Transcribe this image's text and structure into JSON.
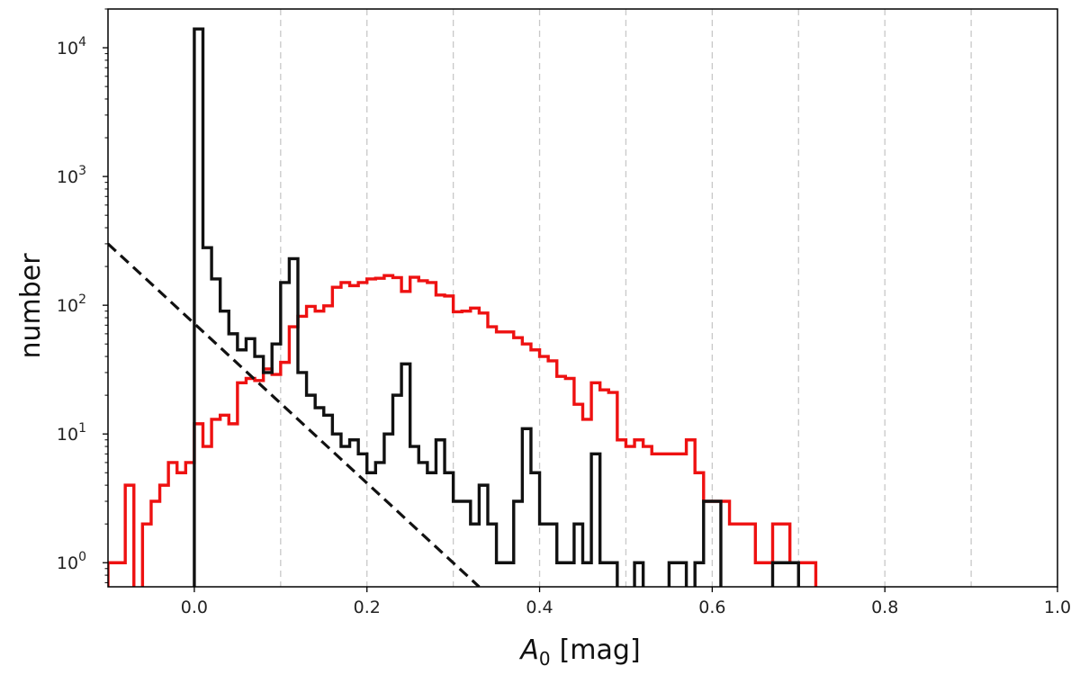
{
  "chart_data": {
    "type": "histogram",
    "xlabel_symbol": "A",
    "xlabel_sub": "0",
    "xlabel_unit": "[mag]",
    "ylabel": "number",
    "xlim": [
      -0.1,
      1.0
    ],
    "ylim": [
      0.65,
      20000
    ],
    "yscale": "log",
    "grid": "vertical dashed lines at x = 0.1 to 0.9",
    "x_tick_labels": [
      "0.0",
      "0.2",
      "0.4",
      "0.6",
      "0.8",
      "1.0"
    ],
    "x_tick_values": [
      0.0,
      0.2,
      0.4,
      0.6,
      0.8,
      1.0
    ],
    "y_tick_exponents": [
      "0",
      "1",
      "2",
      "3",
      "4"
    ],
    "y_tick_base": "10",
    "bin_width": 0.01,
    "series": [
      {
        "color": "#ee1111",
        "bins_start": -0.1,
        "values": [
          1,
          1,
          4,
          0,
          2,
          3,
          4,
          6,
          5,
          6,
          12,
          8,
          13,
          14,
          12,
          25,
          27,
          26,
          32,
          29,
          36,
          68,
          82,
          98,
          90,
          99,
          138,
          150,
          142,
          150,
          160,
          162,
          170,
          164,
          128,
          165,
          155,
          150,
          120,
          118,
          89,
          90,
          95,
          87,
          68,
          62,
          62,
          56,
          50,
          45,
          40,
          37,
          28,
          27,
          17,
          13,
          25,
          22,
          21,
          9,
          8,
          9,
          8,
          7,
          7,
          7,
          7,
          9,
          5,
          3,
          3,
          3,
          2,
          2,
          2,
          1,
          1,
          2,
          2,
          1,
          1,
          1,
          0,
          0,
          0,
          0,
          0,
          0,
          0,
          0,
          0,
          0,
          0,
          0,
          0,
          0,
          0,
          0,
          0,
          0,
          0,
          0,
          0,
          0,
          0,
          0,
          0,
          0,
          0,
          0
        ]
      },
      {
        "color": "#111111",
        "bins_start": -0.1,
        "values": [
          0,
          0,
          0,
          0,
          0,
          0,
          0,
          0,
          0,
          0,
          14000,
          280,
          160,
          90,
          60,
          45,
          55,
          40,
          30,
          50,
          150,
          230,
          30,
          20,
          16,
          14,
          10,
          8,
          9,
          7,
          5,
          6,
          10,
          20,
          35,
          8,
          6,
          5,
          9,
          5,
          3,
          3,
          2,
          4,
          2,
          1,
          1,
          3,
          11,
          5,
          2,
          2,
          1,
          1,
          2,
          1,
          7,
          1,
          1,
          0,
          0,
          1,
          0,
          0,
          0,
          1,
          1,
          0,
          1,
          3,
          3,
          0,
          0,
          0,
          0,
          0,
          0,
          1,
          1,
          1,
          0,
          0,
          0,
          0,
          0,
          0,
          0,
          0,
          0,
          0,
          0,
          0,
          0,
          0,
          0,
          0,
          0,
          0,
          0,
          0,
          0,
          0,
          0,
          0,
          0,
          0,
          0,
          0,
          0,
          0
        ]
      }
    ],
    "reference_line": {
      "style": "dashed",
      "color": "#111111",
      "points": [
        [
          -0.1,
          300
        ],
        [
          0.33,
          0.65
        ]
      ]
    }
  }
}
